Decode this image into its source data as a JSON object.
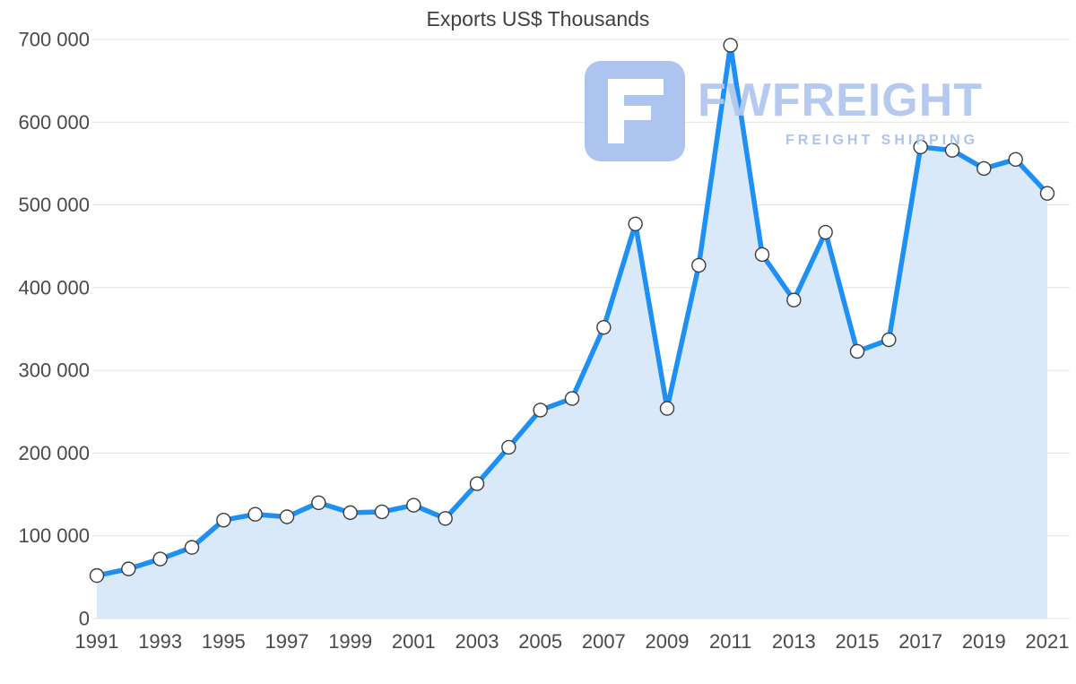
{
  "title": "Exports US$ Thousands",
  "watermark": {
    "brand": "FWFREIGHT",
    "tagline": "FREIGHT SHIPPING"
  },
  "colors": {
    "line": "#1e90f5",
    "area_fill": "#d9e9f9",
    "marker_fill": "#ffffff",
    "marker_stroke": "#3c3c3c",
    "grid": "#e1e1e1",
    "axis_text": "#4a4a4a",
    "title_text": "#404040",
    "watermark_blue": "#a9c2ee"
  },
  "chart_data": {
    "type": "line",
    "title": "Exports US$ Thousands",
    "xlabel": "",
    "ylabel": "",
    "x": [
      1991,
      1992,
      1993,
      1994,
      1995,
      1996,
      1997,
      1998,
      1999,
      2000,
      2001,
      2002,
      2003,
      2004,
      2005,
      2006,
      2007,
      2008,
      2009,
      2010,
      2011,
      2012,
      2013,
      2014,
      2015,
      2016,
      2017,
      2018,
      2019,
      2020,
      2021
    ],
    "values": [
      52000,
      60000,
      72000,
      86000,
      119000,
      126000,
      123000,
      140000,
      128000,
      129000,
      137000,
      121000,
      163000,
      207000,
      252000,
      266000,
      352000,
      477000,
      254000,
      427000,
      693000,
      440000,
      385000,
      467000,
      323000,
      337000,
      570000,
      566000,
      544000,
      555000,
      514000
    ],
    "ylim": [
      0,
      700000
    ],
    "ytick_step": 100000,
    "ytick_labels": [
      "0",
      "100 000",
      "200 000",
      "300 000",
      "400 000",
      "500 000",
      "600 000",
      "700 000"
    ],
    "xtick_labels": [
      "1991",
      "1993",
      "1995",
      "1997",
      "1999",
      "2001",
      "2003",
      "2005",
      "2007",
      "2009",
      "2011",
      "2013",
      "2015",
      "2017",
      "2019",
      "2021"
    ],
    "grid": true,
    "legend_position": "none",
    "marker": "circle-white",
    "area_fill": true
  }
}
